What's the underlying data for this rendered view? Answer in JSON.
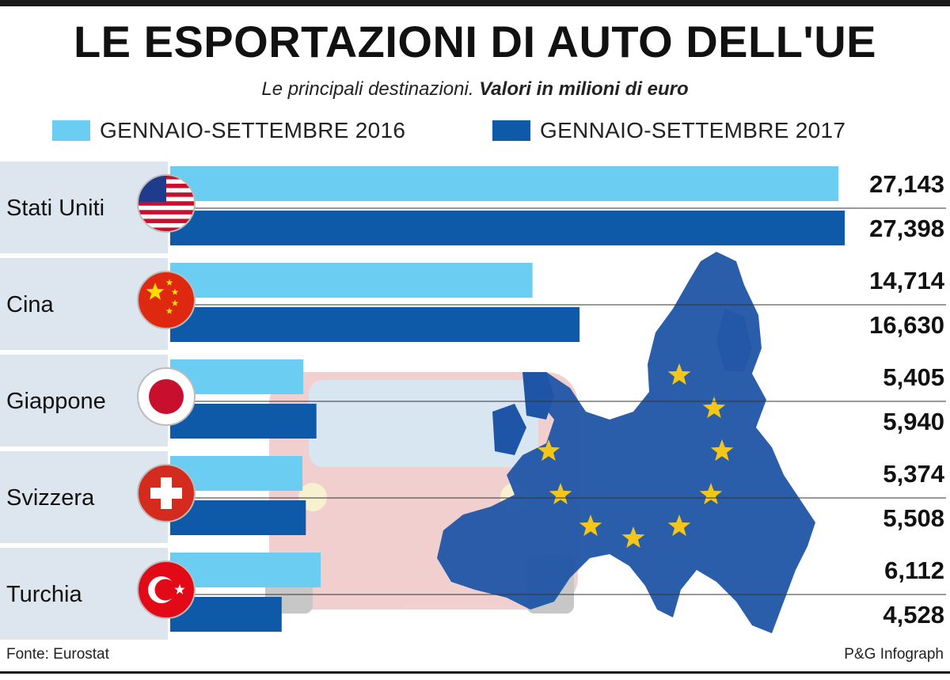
{
  "title": "LE ESPORTAZIONI DI AUTO DELL'UE",
  "subtitle_plain": "Le principali destinazioni.",
  "subtitle_bold": "Valori in milioni di euro",
  "source": "Fonte: Eurostat",
  "credit": "P&G Infograph",
  "colors": {
    "series_2016": "#6ccdf2",
    "series_2017": "#0f5aa8",
    "row_band": "#dde6ee",
    "map_blue": "#1f55a6",
    "star": "#f5c518"
  },
  "chart_data": {
    "type": "bar",
    "orientation": "horizontal",
    "categories": [
      "Stati Uniti",
      "Cina",
      "Giappone",
      "Svizzera",
      "Turchia"
    ],
    "flags": [
      "usa-flag-icon",
      "china-flag-icon",
      "japan-flag-icon",
      "switzerland-flag-icon",
      "turkey-flag-icon"
    ],
    "series": [
      {
        "name": "GENNAIO-SETTEMBRE 2016",
        "values": [
          27.143,
          14.714,
          5.405,
          5.374,
          6.112
        ],
        "labels": [
          "27,143",
          "14,714",
          "5,405",
          "5,374",
          "6,112"
        ]
      },
      {
        "name": "GENNAIO-SETTEMBRE 2017",
        "values": [
          27.398,
          16.63,
          5.94,
          5.508,
          4.528
        ],
        "labels": [
          "27,398",
          "16,630",
          "5,940",
          "5,508",
          "4,528"
        ]
      }
    ],
    "xlim": [
      0,
      27.398
    ],
    "legend": "top",
    "grid": false
  }
}
